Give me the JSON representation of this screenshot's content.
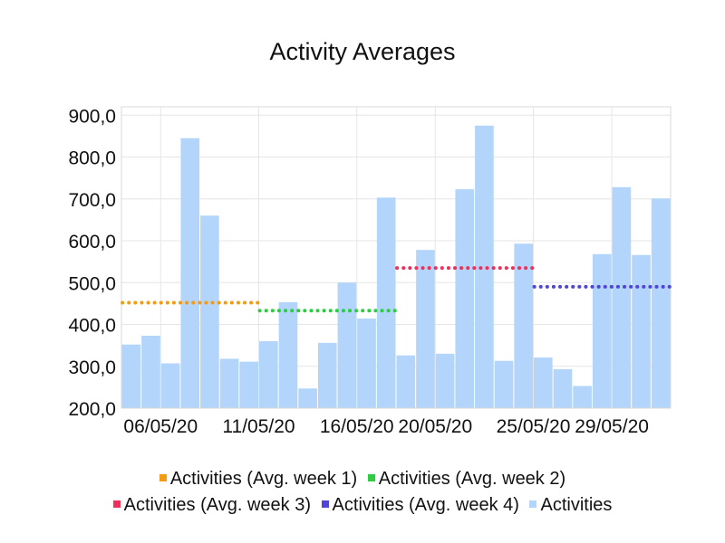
{
  "chart_data": {
    "type": "bar",
    "title": "Activity Averages",
    "ylim": [
      200,
      920
    ],
    "y_ticks": [
      200,
      300,
      400,
      500,
      600,
      700,
      800,
      900
    ],
    "y_tick_labels": [
      "200,0",
      "300,0",
      "400,0",
      "500,0",
      "600,0",
      "700,0",
      "800,0",
      "900,0"
    ],
    "x_tick_labels": [
      "06/05/20",
      "11/05/20",
      "16/05/20",
      "20/05/20",
      "25/05/20",
      "29/05/20"
    ],
    "x_tick_index": [
      1.5,
      6.5,
      11.5,
      15.5,
      20.5,
      24.5
    ],
    "grid": true,
    "legend_position": "bottom",
    "series": [
      {
        "name": "Activities",
        "kind": "bar",
        "color": "#b3d5fb",
        "values": [
          352,
          373,
          307,
          845,
          660,
          318,
          311,
          360,
          453,
          247,
          356,
          500,
          414,
          703,
          326,
          578,
          330,
          723,
          875,
          313,
          593,
          321,
          293,
          253,
          568,
          728,
          566,
          701
        ]
      },
      {
        "name": "Activities (Avg. week 1)",
        "kind": "avg",
        "color": "#f39c12",
        "value": 452,
        "from": 0,
        "to": 6
      },
      {
        "name": "Activities (Avg. week 2)",
        "kind": "avg",
        "color": "#2ecc40",
        "value": 433,
        "from": 7,
        "to": 13
      },
      {
        "name": "Activities (Avg. week 3)",
        "kind": "avg",
        "color": "#f0305a",
        "value": 535,
        "from": 14,
        "to": 20
      },
      {
        "name": "Activities (Avg. week 4)",
        "kind": "avg",
        "color": "#5046d6",
        "value": 490,
        "from": 21,
        "to": 27
      }
    ]
  },
  "legend": {
    "row1": [
      {
        "label": "Activities (Avg. week 1)",
        "color": "#f39c12"
      },
      {
        "label": "Activities (Avg. week 2)",
        "color": "#2ecc40"
      }
    ],
    "row2": [
      {
        "label": "Activities (Avg. week 3)",
        "color": "#f0305a"
      },
      {
        "label": "Activities (Avg. week 4)",
        "color": "#5046d6"
      },
      {
        "label": "Activities",
        "color": "#b3d5fb"
      }
    ]
  }
}
